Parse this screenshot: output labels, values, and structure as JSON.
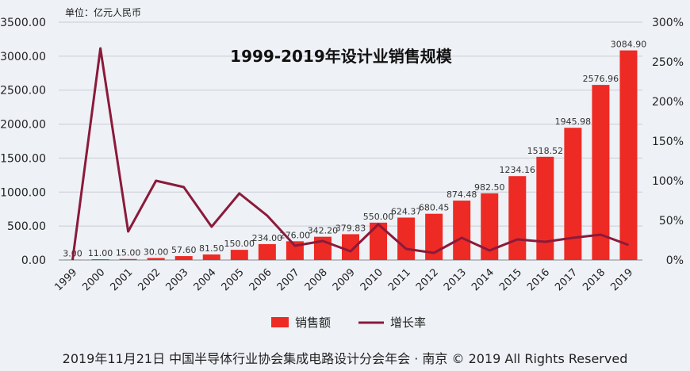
{
  "chart_data": {
    "type": "bar",
    "title": "1999-2019年设计业销售规模",
    "unit_label": "单位：亿元人民币",
    "categories": [
      "1999",
      "2000",
      "2001",
      "2002",
      "2003",
      "2004",
      "2005",
      "2006",
      "2007",
      "2008",
      "2009",
      "2010",
      "2011",
      "2012",
      "2013",
      "2014",
      "2015",
      "2016",
      "2017",
      "2018",
      "2019"
    ],
    "series": [
      {
        "name": "销售额",
        "type": "bar",
        "axis": "left",
        "color": "#ee2a24",
        "values": [
          3.0,
          11.0,
          15.0,
          30.0,
          57.6,
          81.5,
          150.0,
          234.0,
          276.0,
          342.2,
          379.83,
          550.0,
          624.37,
          680.45,
          874.48,
          982.5,
          1234.16,
          1518.52,
          1945.98,
          2576.96,
          3084.9
        ],
        "labels": [
          "3.00",
          "11.00",
          "15.00",
          "30.00",
          "57.60",
          "81.50",
          "150.00",
          "234.00",
          "276.00",
          "342.20",
          "379.83",
          "550.00",
          "624.37",
          "680.45",
          "874.48",
          "982.50",
          "1234.16",
          "1518.52",
          "1945.98",
          "2576.96",
          "3084.90"
        ]
      },
      {
        "name": "增长率",
        "type": "line",
        "axis": "right",
        "color": "#8b1a3a",
        "values": [
          0,
          267,
          36,
          100,
          92,
          42,
          84,
          56,
          18,
          24,
          11,
          45,
          14,
          9,
          28,
          12,
          26,
          23,
          28,
          32,
          19
        ]
      }
    ],
    "y_left": {
      "min": 0,
      "max": 3500,
      "ticks": [
        "0.00",
        "500.00",
        "1000.00",
        "1500.00",
        "2000.00",
        "2500.00",
        "3000.00",
        "3500.00"
      ]
    },
    "y_right": {
      "min": 0,
      "max": 300,
      "ticks": [
        "0%",
        "50%",
        "100%",
        "150%",
        "200%",
        "250%",
        "300%"
      ]
    },
    "grid": true,
    "legend_position": "bottom"
  },
  "footer": "2019年11月21日 中国半导体行业协会集成电路设计分会年会 · 南京 © 2019 All Rights Reserved"
}
